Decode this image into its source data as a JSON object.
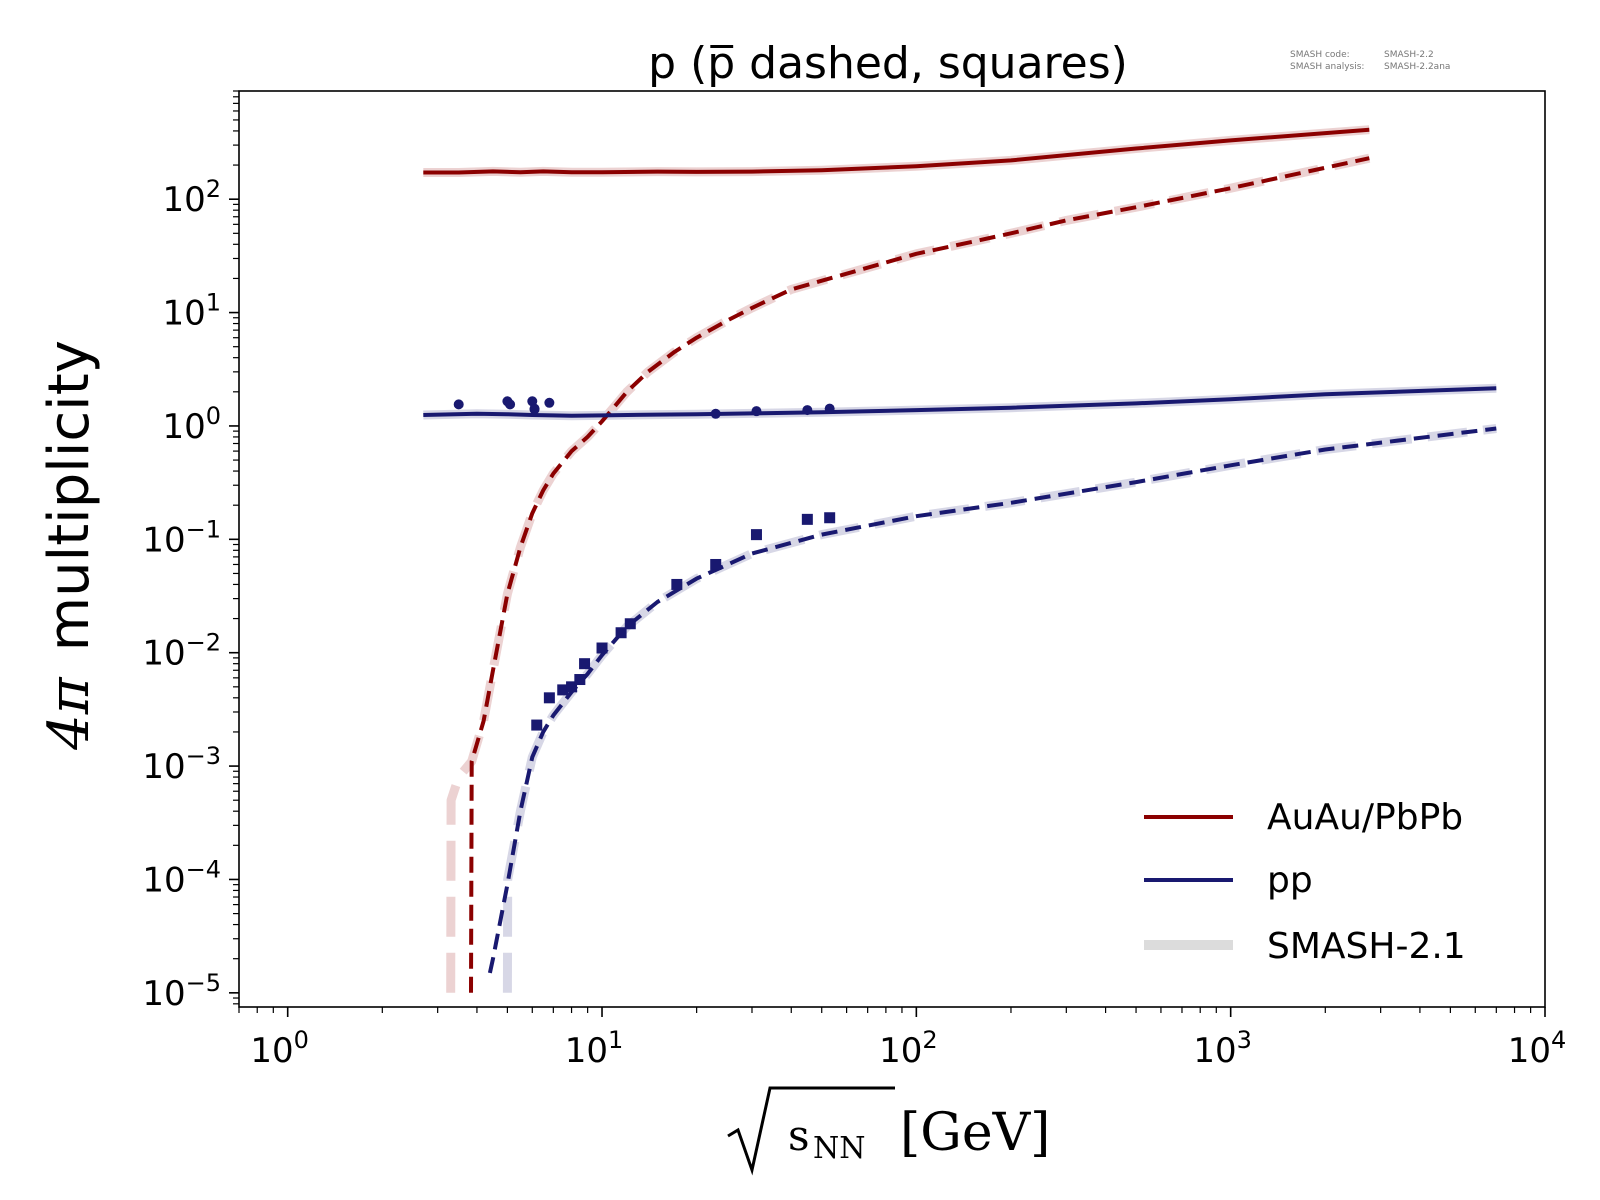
{
  "chart_data": {
    "type": "line",
    "title": "p (p̅ dashed, squares)",
    "info": {
      "code_label": "SMASH code:",
      "code_value": "SMASH-2.2",
      "analysis_label": "SMASH analysis:",
      "analysis_value": "SMASH-2.2ana"
    },
    "xlabel": "[GeV]",
    "xlabel_sub": "NN",
    "xlabel_var": "s",
    "ylabel": "multiplicity",
    "ylabel_prefix": "4π",
    "x_scale": "log",
    "y_scale": "log",
    "xlim": [
      0.7,
      10000
    ],
    "ylim": [
      7.5e-06,
      900
    ],
    "x_ticks": [
      {
        "value": 1,
        "base": "10",
        "exp": "0"
      },
      {
        "value": 10,
        "base": "10",
        "exp": "1"
      },
      {
        "value": 100,
        "base": "10",
        "exp": "2"
      },
      {
        "value": 1000,
        "base": "10",
        "exp": "3"
      },
      {
        "value": 10000,
        "base": "10",
        "exp": "4"
      }
    ],
    "y_ticks": [
      {
        "value": 1e-05,
        "base": "10",
        "exp": "−5"
      },
      {
        "value": 0.0001,
        "base": "10",
        "exp": "−4"
      },
      {
        "value": 0.001,
        "base": "10",
        "exp": "−3"
      },
      {
        "value": 0.01,
        "base": "10",
        "exp": "−2"
      },
      {
        "value": 0.1,
        "base": "10",
        "exp": "−1"
      },
      {
        "value": 1,
        "base": "10",
        "exp": "0"
      },
      {
        "value": 10,
        "base": "10",
        "exp": "1"
      },
      {
        "value": 100,
        "base": "10",
        "exp": "2"
      }
    ],
    "legend_position": "bottom-right",
    "legend": [
      {
        "label": "AuAu/PbPb",
        "color": "#8b0000",
        "style": "solid"
      },
      {
        "label": "pp",
        "color": "#191970",
        "style": "solid"
      },
      {
        "label": "SMASH-2.1",
        "color": "#dcdcdc",
        "style": "thick"
      }
    ],
    "colors": {
      "auau": "#8b0000",
      "pp": "#191970",
      "ref_auau": "#ecd2d2",
      "ref_pp": "#d7d7e6"
    },
    "series": [
      {
        "name": "AuAu/PbPb",
        "particle": "p",
        "kind": "line",
        "style": "solid",
        "color": "#8b0000",
        "x": [
          2.7,
          3.5,
          4.5,
          5.5,
          6.5,
          8,
          10,
          15,
          20,
          30,
          50,
          100,
          200,
          500,
          1000,
          2760
        ],
        "y": [
          172,
          172,
          176,
          173,
          176,
          173,
          173,
          175,
          174,
          175,
          180,
          195,
          220,
          280,
          330,
          410
        ]
      },
      {
        "name": "AuAu/PbPb",
        "particle": "p̅",
        "kind": "line",
        "style": "dashed",
        "color": "#8b0000",
        "x": [
          3.83,
          3.85,
          4.2,
          4.5,
          5.0,
          5.5,
          6.0,
          6.5,
          7.0,
          8.0,
          9.0,
          10,
          11,
          12,
          14,
          17,
          20,
          25,
          30,
          40,
          60,
          100,
          150,
          200,
          300,
          500,
          1000,
          2760
        ],
        "y": [
          1e-05,
          0.0011,
          0.0025,
          0.007,
          0.033,
          0.085,
          0.17,
          0.27,
          0.38,
          0.6,
          0.8,
          1.1,
          1.5,
          2.0,
          3.0,
          4.5,
          6.0,
          8.5,
          11,
          16,
          22,
          33,
          42,
          50,
          65,
          85,
          125,
          230
        ]
      },
      {
        "name": "AuAu/PbPb",
        "particle": "p",
        "kind": "ref",
        "color": "#ecd2d2",
        "x": [
          2.7,
          3.5,
          4.5,
          5.5,
          6.5,
          8,
          10,
          15,
          20,
          30,
          50,
          100,
          200,
          500,
          1000,
          2760
        ],
        "y": [
          172,
          172,
          176,
          173,
          176,
          173,
          173,
          175,
          174,
          175,
          180,
          195,
          220,
          280,
          330,
          410
        ]
      },
      {
        "name": "AuAu/PbPb",
        "particle": "p̅",
        "kind": "ref",
        "color": "#ecd2d2",
        "x": [
          3.3,
          3.31,
          3.5,
          3.85,
          4.2,
          4.5,
          5.0,
          5.5,
          6.0,
          6.5,
          7.0,
          8.0,
          9.0,
          10,
          11,
          12,
          14,
          17,
          20,
          25,
          30,
          40,
          60,
          100,
          150,
          200,
          300,
          500,
          1000,
          2760
        ],
        "y": [
          1e-05,
          0.0005,
          0.0008,
          0.0011,
          0.0025,
          0.007,
          0.033,
          0.085,
          0.17,
          0.27,
          0.38,
          0.6,
          0.8,
          1.1,
          1.5,
          2.0,
          3.0,
          4.5,
          6.0,
          8.5,
          11,
          16,
          22,
          33,
          42,
          50,
          65,
          85,
          125,
          230
        ]
      },
      {
        "name": "pp",
        "particle": "p",
        "kind": "line",
        "style": "solid",
        "color": "#191970",
        "x": [
          2.7,
          4,
          5,
          6,
          7,
          8,
          10,
          15,
          20,
          30,
          50,
          100,
          200,
          500,
          1000,
          2000,
          7000
        ],
        "y": [
          1.25,
          1.28,
          1.27,
          1.25,
          1.24,
          1.23,
          1.24,
          1.26,
          1.27,
          1.29,
          1.32,
          1.38,
          1.45,
          1.58,
          1.72,
          1.9,
          2.15
        ]
      },
      {
        "name": "pp",
        "particle": "p̅",
        "kind": "line",
        "style": "dashed",
        "color": "#191970",
        "x": [
          4.4,
          4.5,
          5.0,
          5.5,
          6.0,
          6.5,
          7.0,
          8.0,
          9.0,
          10,
          12,
          15,
          20,
          30,
          50,
          100,
          200,
          500,
          1000,
          2000,
          7000
        ],
        "y": [
          1.5e-05,
          2e-05,
          9e-05,
          0.0004,
          0.0012,
          0.002,
          0.0028,
          0.0045,
          0.0065,
          0.0095,
          0.017,
          0.028,
          0.045,
          0.075,
          0.11,
          0.16,
          0.21,
          0.32,
          0.45,
          0.62,
          0.95
        ]
      },
      {
        "name": "pp",
        "particle": "p",
        "kind": "ref",
        "color": "#d7d7e6",
        "x": [
          2.7,
          4,
          5,
          6,
          7,
          8,
          10,
          15,
          20,
          30,
          50,
          100,
          200,
          500,
          1000,
          2000,
          7000
        ],
        "y": [
          1.25,
          1.28,
          1.27,
          1.25,
          1.24,
          1.23,
          1.24,
          1.26,
          1.27,
          1.29,
          1.32,
          1.38,
          1.45,
          1.58,
          1.72,
          1.9,
          2.15
        ]
      },
      {
        "name": "pp",
        "particle": "p̅",
        "kind": "ref",
        "color": "#d7d7e6",
        "x": [
          5.0,
          5.01,
          5.5,
          6.0,
          6.5,
          7.0,
          8.0,
          9.0,
          10,
          12,
          15,
          20,
          30,
          50,
          100,
          200,
          500,
          1000,
          2000,
          7000
        ],
        "y": [
          1e-05,
          0.0001,
          0.0004,
          0.0012,
          0.002,
          0.0028,
          0.0045,
          0.0065,
          0.0095,
          0.017,
          0.028,
          0.045,
          0.075,
          0.11,
          0.16,
          0.21,
          0.32,
          0.45,
          0.62,
          0.95
        ]
      },
      {
        "name": "pp",
        "particle": "p",
        "kind": "points",
        "marker": "circle",
        "color": "#191970",
        "x": [
          3.5,
          5.0,
          5.1,
          6.0,
          6.1,
          6.1,
          6.8,
          23,
          31,
          45,
          53
        ],
        "y": [
          1.55,
          1.65,
          1.55,
          1.65,
          1.42,
          1.4,
          1.6,
          1.28,
          1.35,
          1.38,
          1.42
        ]
      },
      {
        "name": "pp",
        "particle": "p̅",
        "kind": "points",
        "marker": "square",
        "color": "#191970",
        "x": [
          6.2,
          6.8,
          7.5,
          8.0,
          8.5,
          8.8,
          10,
          11.5,
          12.3,
          17.3,
          23,
          31,
          45,
          53
        ],
        "y": [
          0.0023,
          0.004,
          0.0047,
          0.005,
          0.0058,
          0.008,
          0.011,
          0.015,
          0.018,
          0.04,
          0.06,
          0.11,
          0.15,
          0.155
        ]
      }
    ]
  }
}
